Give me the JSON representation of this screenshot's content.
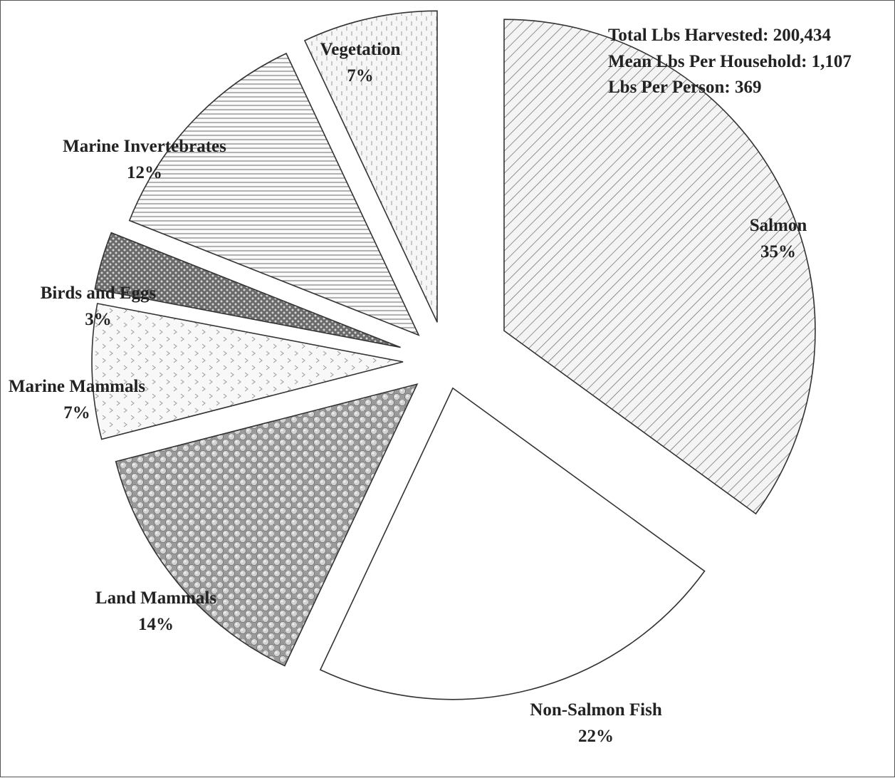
{
  "chart_data": {
    "type": "pie",
    "title": "",
    "stats": [
      "Total Lbs Harvested: 200,434",
      "Mean Lbs Per Household: 1,107",
      "Lbs Per Person: 369"
    ],
    "slices": [
      {
        "name": "Salmon",
        "percent_label": "35%",
        "value": 35
      },
      {
        "name": "Non-Salmon Fish",
        "percent_label": "22%",
        "value": 22
      },
      {
        "name": "Land Mammals",
        "percent_label": "14%",
        "value": 14
      },
      {
        "name": "Marine Mammals",
        "percent_label": "7%",
        "value": 7
      },
      {
        "name": "Birds and Eggs",
        "percent_label": "3%",
        "value": 3
      },
      {
        "name": "Marine Invertebrates",
        "percent_label": "12%",
        "value": 12
      },
      {
        "name": "Vegetation",
        "percent_label": "7%",
        "value": 7
      }
    ],
    "start_angle": "12 o'clock",
    "direction": "clockwise",
    "exploded": true,
    "fills": [
      "diagonal-lines",
      "white",
      "dotted-spheres",
      "chevrons",
      "dark-dots",
      "horizontal-lines",
      "vertical-dashes"
    ],
    "colors": {
      "outline": "#333333",
      "text": "#222222",
      "background": "#ffffff"
    }
  }
}
